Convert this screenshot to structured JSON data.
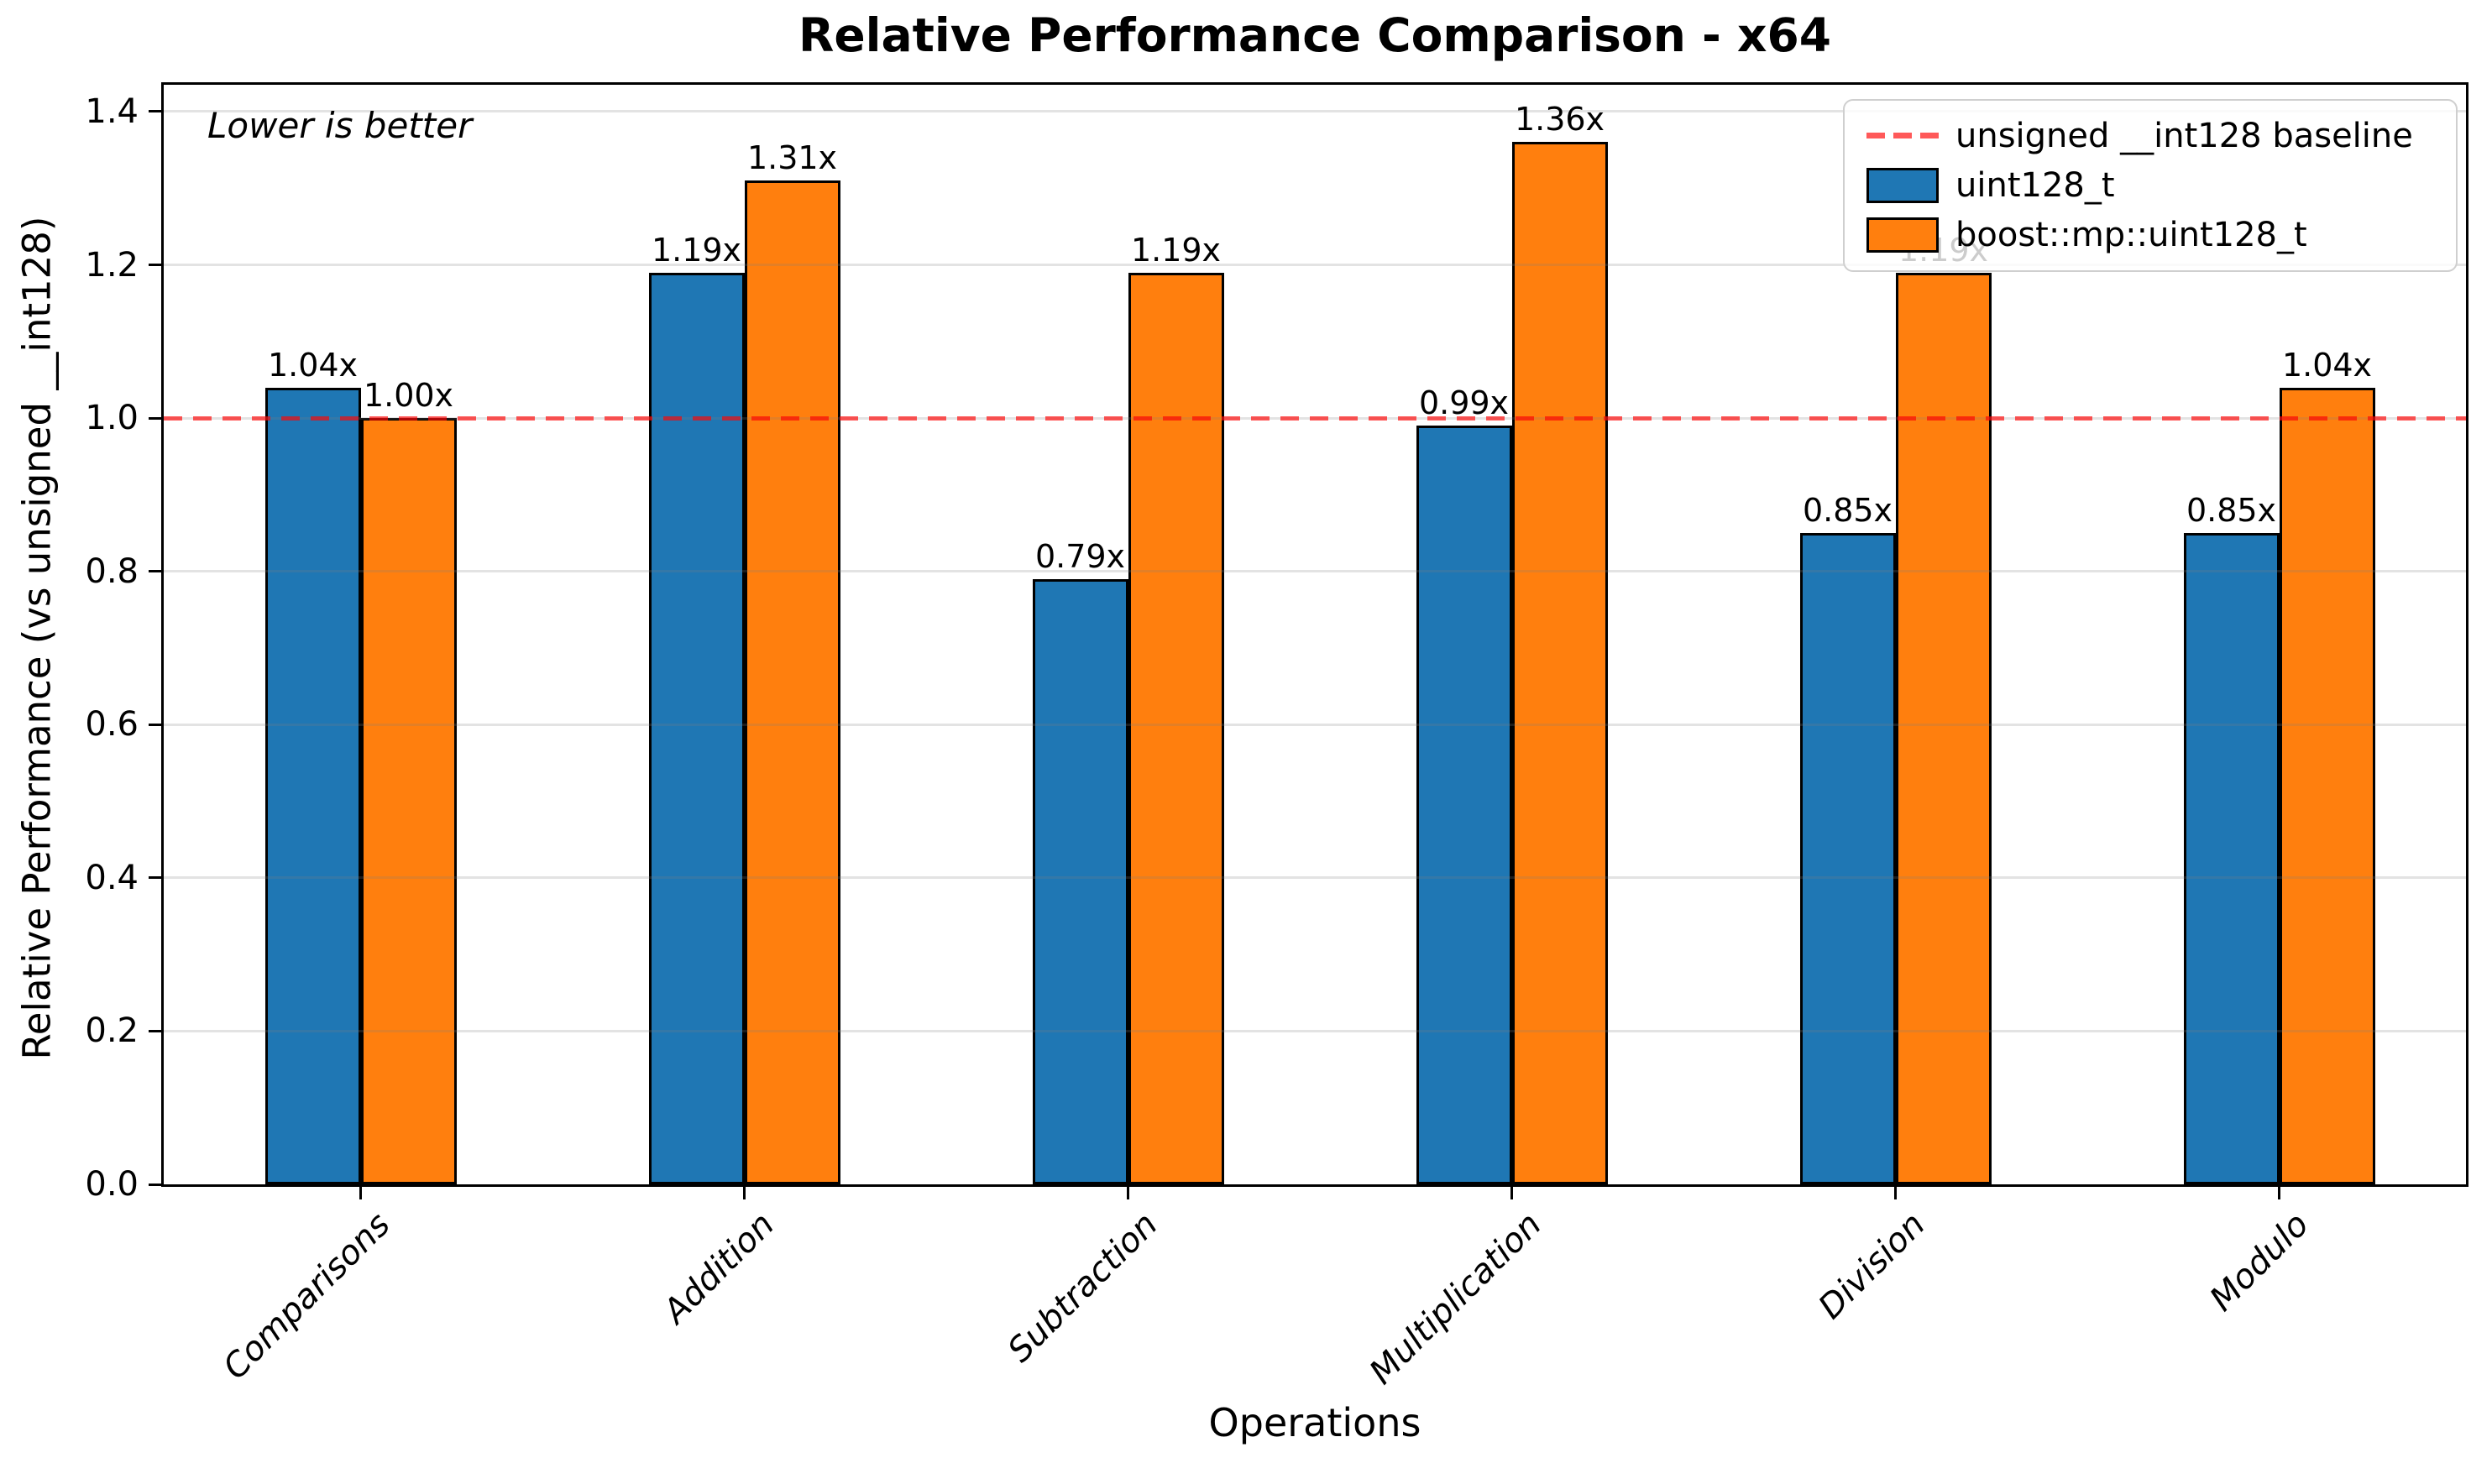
{
  "chart_data": {
    "type": "bar",
    "title": "Relative Performance Comparison - x64",
    "xlabel": "Operations",
    "ylabel": "Relative Performance (vs unsigned __int128)",
    "annotation": "Lower is better",
    "categories": [
      "Comparisons",
      "Addition",
      "Subtraction",
      "Multiplication",
      "Division",
      "Modulo"
    ],
    "series": [
      {
        "name": "uint128_t",
        "color": "#1f77b4",
        "values": [
          1.04,
          1.19,
          0.79,
          0.99,
          0.85,
          0.85
        ],
        "labels": [
          "1.04x",
          "1.19x",
          "0.79x",
          "0.99x",
          "0.85x",
          "0.85x"
        ]
      },
      {
        "name": "boost::mp::uint128_t",
        "color": "#ff7f0e",
        "values": [
          1.0,
          1.31,
          1.19,
          1.36,
          1.19,
          1.04
        ],
        "labels": [
          "1.00x",
          "1.31x",
          "1.19x",
          "1.36x",
          "1.19x",
          "1.04x"
        ]
      }
    ],
    "baseline": {
      "value": 1.0,
      "label": "unsigned __int128 baseline",
      "color": "255,0,0",
      "alpha": 0.65
    },
    "yticks": [
      "0.0",
      "0.2",
      "0.4",
      "0.6",
      "0.8",
      "1.0",
      "1.2",
      "1.4"
    ],
    "ylim": [
      0,
      1.435
    ],
    "grid": true,
    "legend_position": "upper right",
    "bar_edge_color": "#000000"
  }
}
